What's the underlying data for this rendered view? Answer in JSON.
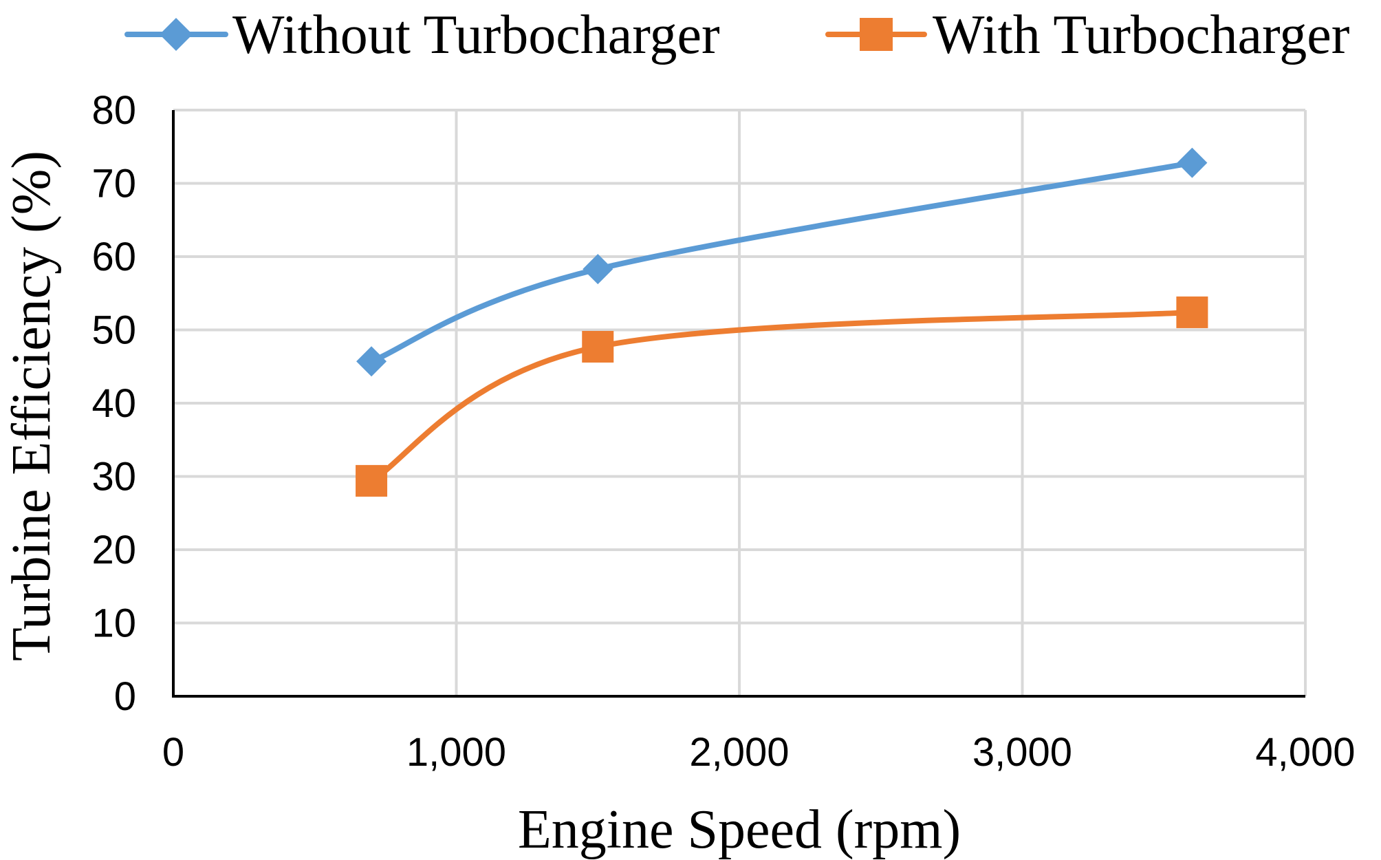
{
  "chart_data": {
    "type": "line",
    "title": "",
    "xlabel": "Engine Speed (rpm)",
    "ylabel": "Turbine Efficiency (%)",
    "xlim": [
      0,
      4000
    ],
    "ylim": [
      0,
      80
    ],
    "x_ticks": [
      0,
      1000,
      2000,
      3000,
      4000
    ],
    "x_tick_labels": [
      "0",
      "1,000",
      "2,000",
      "3,000",
      "4,000"
    ],
    "y_ticks": [
      0,
      10,
      20,
      30,
      40,
      50,
      60,
      70,
      80
    ],
    "y_tick_labels": [
      "0",
      "10",
      "20",
      "30",
      "40",
      "50",
      "60",
      "70",
      "80"
    ],
    "grid": true,
    "smooth": true,
    "legend_position": "top",
    "series": [
      {
        "name": "Without Turbocharger",
        "color": "#5B9BD5",
        "marker": "diamond",
        "x": [
          700,
          1500,
          3600
        ],
        "y": [
          45.7,
          58.3,
          72.8
        ]
      },
      {
        "name": "With Turbocharger",
        "color": "#ED7D31",
        "marker": "square",
        "x": [
          700,
          1500,
          3600
        ],
        "y": [
          29.4,
          47.7,
          52.4
        ]
      }
    ]
  }
}
